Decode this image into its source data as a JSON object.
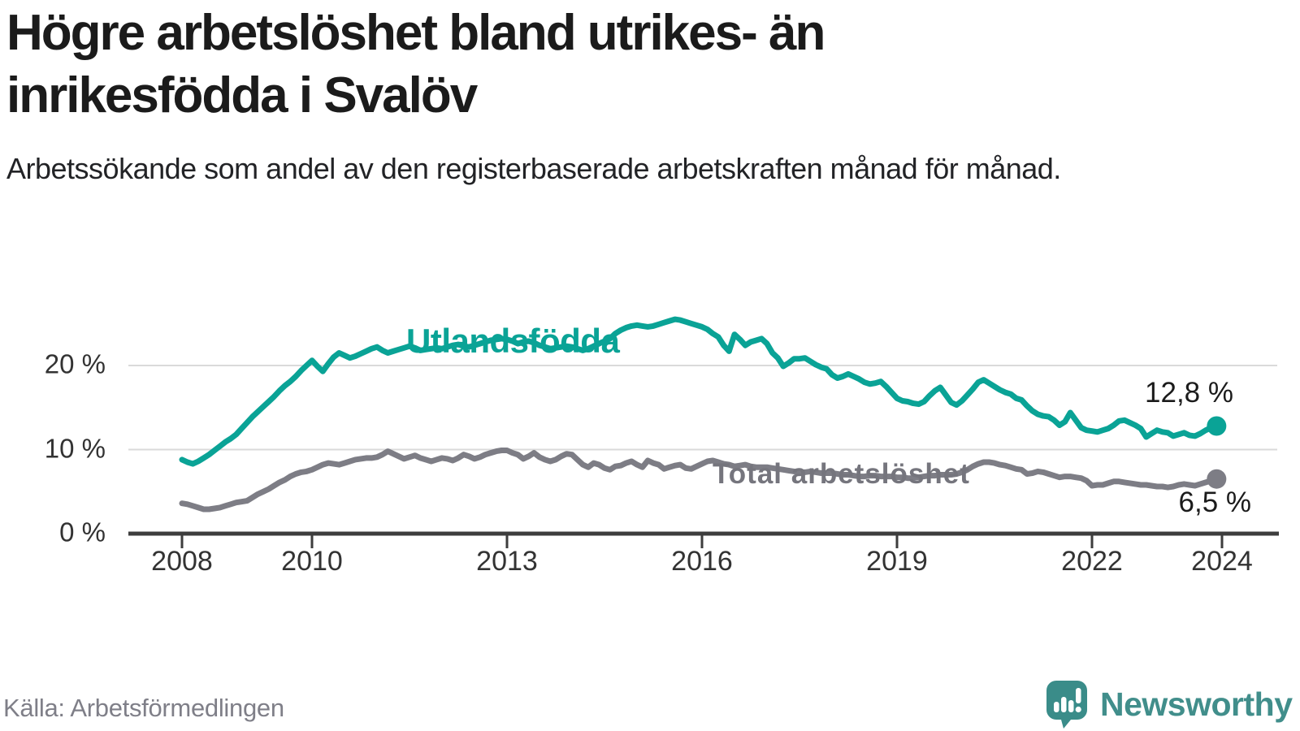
{
  "header": {
    "title_lines": [
      "Högre arbetslöshet bland utrikes- än",
      "inrikesfödda i Svalöv"
    ],
    "subtitle": "Arbetssökande som andel av den registerbaserade arbetskraften månad för månad."
  },
  "footer": {
    "source": "Källa: Arbetsförmedlingen",
    "brand_name": "Newsworthy"
  },
  "colors": {
    "series_utlandsfodda": "#0aa396",
    "series_total": "#7d7d85",
    "series_total_label": "#75757d",
    "gridline": "#dadada",
    "axis": "#3d3d3d",
    "text_dark": "#1b1b1b",
    "brand_teal": "#418e8b"
  },
  "chart_data": {
    "type": "line",
    "title": "Högre arbetslöshet bland utrikes- än inrikesfödda i Svalöv",
    "subtitle": "Arbetssökande som andel av den registerbaserade arbetskraften månad för månad.",
    "unit": "%",
    "x_start_year": 2008,
    "x_step_months": 1,
    "xlim": [
      2007.2,
      2024.85
    ],
    "ylim": [
      0,
      27.5
    ],
    "grid": "horizontal",
    "legend_position": "inline-labels",
    "x_ticks": [
      {
        "value": 2008,
        "label": "2008"
      },
      {
        "value": 2010,
        "label": "2010"
      },
      {
        "value": 2013,
        "label": "2013"
      },
      {
        "value": 2016,
        "label": "2016"
      },
      {
        "value": 2019,
        "label": "2019"
      },
      {
        "value": 2022,
        "label": "2022"
      },
      {
        "value": 2024,
        "label": "2024"
      }
    ],
    "y_ticks": [
      {
        "value": 0,
        "label": "0 %"
      },
      {
        "value": 10,
        "label": "10 %"
      },
      {
        "value": 20,
        "label": "20 %"
      }
    ],
    "series": [
      {
        "name": "Utlandsfödda",
        "color": "#0aa396",
        "end_label": "12,8 %",
        "end_value": 12.8,
        "values": [
          8.8,
          8.5,
          8.3,
          8.6,
          9.0,
          9.4,
          9.9,
          10.4,
          10.9,
          11.3,
          11.8,
          12.5,
          13.2,
          13.9,
          14.5,
          15.1,
          15.7,
          16.3,
          17.0,
          17.6,
          18.1,
          18.7,
          19.4,
          20.0,
          20.6,
          19.9,
          19.3,
          20.2,
          21.0,
          21.5,
          21.2,
          20.9,
          21.1,
          21.4,
          21.7,
          22.0,
          22.2,
          21.8,
          21.5,
          21.7,
          21.9,
          22.1,
          22.3,
          22.1,
          21.8,
          21.9,
          22.0,
          22.1,
          22.0,
          22.2,
          22.4,
          22.5,
          22.3,
          22.2,
          22.4,
          22.6,
          22.8,
          23.0,
          23.1,
          23.2,
          23.1,
          22.9,
          22.6,
          22.8,
          22.9,
          22.7,
          22.4,
          22.2,
          22.0,
          22.1,
          22.2,
          22.3,
          22.2,
          22.0,
          21.8,
          22.0,
          22.3,
          22.6,
          22.9,
          23.2,
          23.8,
          24.2,
          24.5,
          24.7,
          24.8,
          24.7,
          24.6,
          24.7,
          24.9,
          25.1,
          25.3,
          25.5,
          25.4,
          25.2,
          25.0,
          24.8,
          24.6,
          24.3,
          23.8,
          23.4,
          22.4,
          21.7,
          23.7,
          23.1,
          22.4,
          22.8,
          23.0,
          23.2,
          22.6,
          21.5,
          20.9,
          19.9,
          20.3,
          20.8,
          20.8,
          20.9,
          20.5,
          20.1,
          19.8,
          19.6,
          18.9,
          18.5,
          18.7,
          19.0,
          18.7,
          18.4,
          18.0,
          17.8,
          17.9,
          18.1,
          17.5,
          16.8,
          16.1,
          15.8,
          15.7,
          15.5,
          15.4,
          15.7,
          16.4,
          17.0,
          17.4,
          16.5,
          15.6,
          15.3,
          15.8,
          16.5,
          17.2,
          18.0,
          18.3,
          17.9,
          17.5,
          17.1,
          16.8,
          16.6,
          16.1,
          15.9,
          15.2,
          14.6,
          14.2,
          14.0,
          13.9,
          13.5,
          12.9,
          13.3,
          14.4,
          13.5,
          12.6,
          12.3,
          12.2,
          12.1,
          12.3,
          12.5,
          12.9,
          13.4,
          13.5,
          13.2,
          12.9,
          12.5,
          11.5,
          11.9,
          12.3,
          12.1,
          12.0,
          11.6,
          11.8,
          12.0,
          11.7,
          11.6,
          11.9,
          12.3,
          12.6,
          12.8
        ]
      },
      {
        "name": "Total arbetslöshet",
        "color": "#7d7d85",
        "end_label": "6,5 %",
        "end_value": 6.5,
        "values": [
          3.6,
          3.5,
          3.3,
          3.1,
          2.9,
          2.9,
          3.0,
          3.1,
          3.3,
          3.5,
          3.7,
          3.8,
          3.9,
          4.3,
          4.7,
          5.0,
          5.3,
          5.7,
          6.1,
          6.4,
          6.8,
          7.1,
          7.3,
          7.4,
          7.6,
          7.9,
          8.2,
          8.4,
          8.3,
          8.2,
          8.4,
          8.6,
          8.8,
          8.9,
          9.0,
          9.0,
          9.1,
          9.4,
          9.8,
          9.5,
          9.2,
          8.9,
          9.1,
          9.3,
          9.0,
          8.8,
          8.6,
          8.8,
          9.0,
          8.9,
          8.7,
          9.0,
          9.4,
          9.2,
          8.9,
          9.1,
          9.4,
          9.6,
          9.8,
          9.9,
          9.9,
          9.6,
          9.4,
          8.9,
          9.2,
          9.6,
          9.1,
          8.8,
          8.6,
          8.8,
          9.2,
          9.5,
          9.4,
          8.8,
          8.2,
          7.9,
          8.4,
          8.2,
          7.8,
          7.6,
          8.0,
          8.1,
          8.4,
          8.6,
          8.2,
          7.9,
          8.7,
          8.4,
          8.2,
          7.7,
          7.9,
          8.1,
          8.2,
          7.8,
          7.7,
          8.0,
          8.3,
          8.6,
          8.7,
          8.5,
          8.3,
          8.2,
          8.0,
          8.1,
          8.2,
          8.0,
          7.9,
          7.9,
          7.9,
          7.8,
          7.7,
          7.6,
          7.5,
          7.4,
          7.3,
          7.3,
          7.4,
          7.3,
          7.2,
          7.2,
          7.2,
          7.1,
          7.0,
          7.0,
          6.9,
          6.8,
          6.8,
          6.9,
          6.9,
          6.8,
          6.8,
          6.8,
          6.7,
          6.7,
          6.6,
          6.6,
          6.7,
          6.8,
          6.9,
          6.9,
          7.0,
          7.0,
          7.0,
          7.1,
          7.3,
          7.6,
          8.0,
          8.3,
          8.5,
          8.5,
          8.4,
          8.2,
          8.1,
          7.9,
          7.7,
          7.6,
          7.1,
          7.2,
          7.4,
          7.3,
          7.1,
          6.9,
          6.7,
          6.8,
          6.8,
          6.7,
          6.6,
          6.3,
          5.7,
          5.8,
          5.8,
          6.0,
          6.2,
          6.2,
          6.1,
          6.0,
          5.9,
          5.8,
          5.8,
          5.7,
          5.6,
          5.6,
          5.5,
          5.6,
          5.8,
          5.9,
          5.8,
          5.7,
          5.9,
          6.1,
          6.3,
          6.5
        ]
      }
    ]
  }
}
